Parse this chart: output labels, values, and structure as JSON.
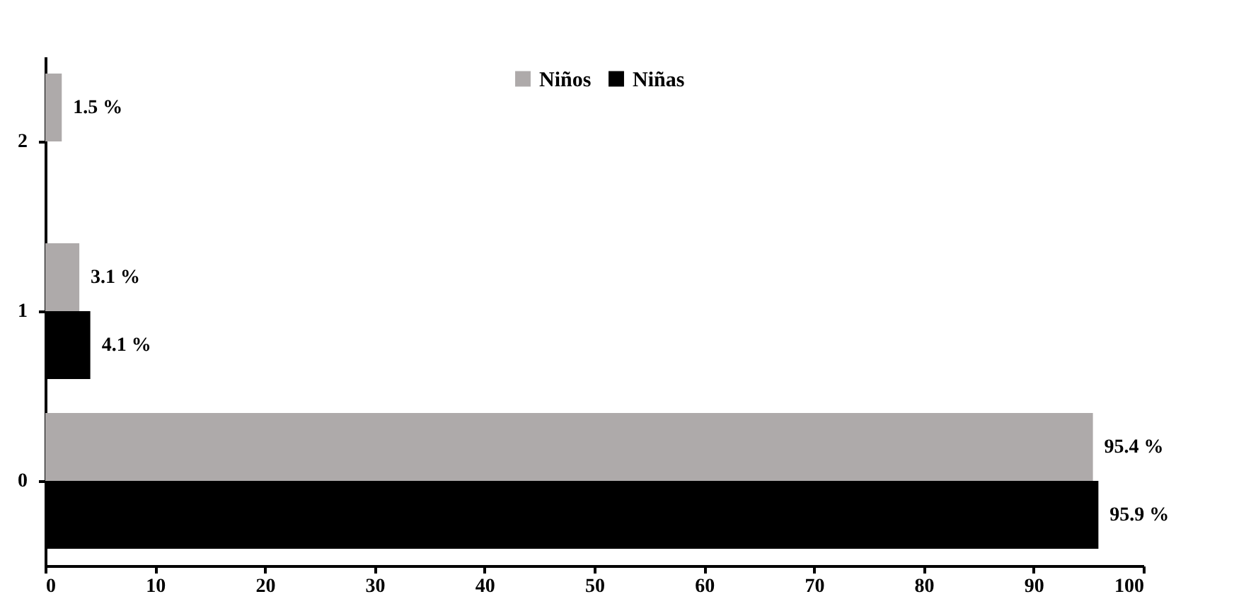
{
  "chart_data": {
    "type": "bar",
    "orientation": "horizontal",
    "categories": [
      "2",
      "1",
      "0"
    ],
    "series": [
      {
        "name": "Niños",
        "color": "#aeaaaa",
        "values": [
          1.5,
          3.1,
          95.4
        ],
        "value_labels": [
          "1.5 %",
          "3.1 %",
          "95.4 %"
        ]
      },
      {
        "name": "Niñas",
        "color": "#000000",
        "values": [
          null,
          4.1,
          95.9
        ],
        "value_labels": [
          null,
          "4.1 %",
          "95.9 %"
        ]
      }
    ],
    "xlim": [
      0,
      100
    ],
    "xticks": [
      0,
      10,
      20,
      30,
      40,
      50,
      60,
      70,
      80,
      90,
      100
    ],
    "legend": "top"
  }
}
